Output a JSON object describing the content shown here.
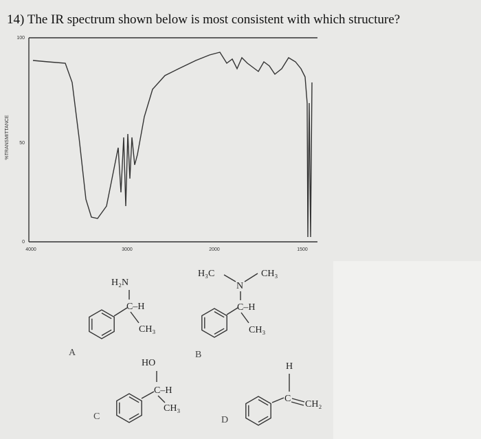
{
  "question": "14) The IR spectrum shown below is most consistent with which structure?",
  "spectrum": {
    "y_axis_label": "%TRANSMITTANCE",
    "y_ticks": [
      "100",
      "50",
      "0"
    ],
    "x_ticks": [
      "4000",
      "3000",
      "2000",
      "1500"
    ]
  },
  "options": [
    {
      "label": "A",
      "atoms": [
        "H₂N",
        "C–H",
        "CH₃"
      ]
    },
    {
      "label": "B",
      "atoms": [
        "H₃C",
        "N",
        "CH₃",
        "C–H",
        "CH₃"
      ]
    },
    {
      "label": "C",
      "atoms": [
        "HO",
        "C–H",
        "CH₃"
      ]
    },
    {
      "label": "D",
      "atoms": [
        "H",
        "C",
        "CH₂"
      ]
    }
  ]
}
